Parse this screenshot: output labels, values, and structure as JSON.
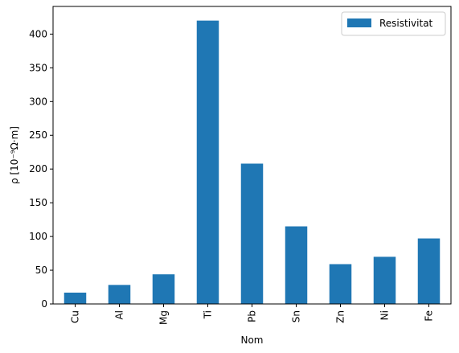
{
  "chart_data": {
    "type": "bar",
    "categories": [
      "Cu",
      "Al",
      "Mg",
      "Ti",
      "Pb",
      "Sn",
      "Zn",
      "Ni",
      "Fe"
    ],
    "series": [
      {
        "name": "Resistivitat",
        "values": [
          16.8,
          28.2,
          43.9,
          420,
          208,
          115,
          59,
          69.9,
          97.1
        ],
        "color": "#1f77b4"
      }
    ],
    "xlabel": "Nom",
    "ylabel": "ρ  [10⁻⁹Ω·m]",
    "ylim": [
      0,
      441
    ],
    "yticks": [
      0,
      50,
      100,
      150,
      200,
      250,
      300,
      350,
      400
    ],
    "legend_position": "top-right",
    "grid": false
  }
}
